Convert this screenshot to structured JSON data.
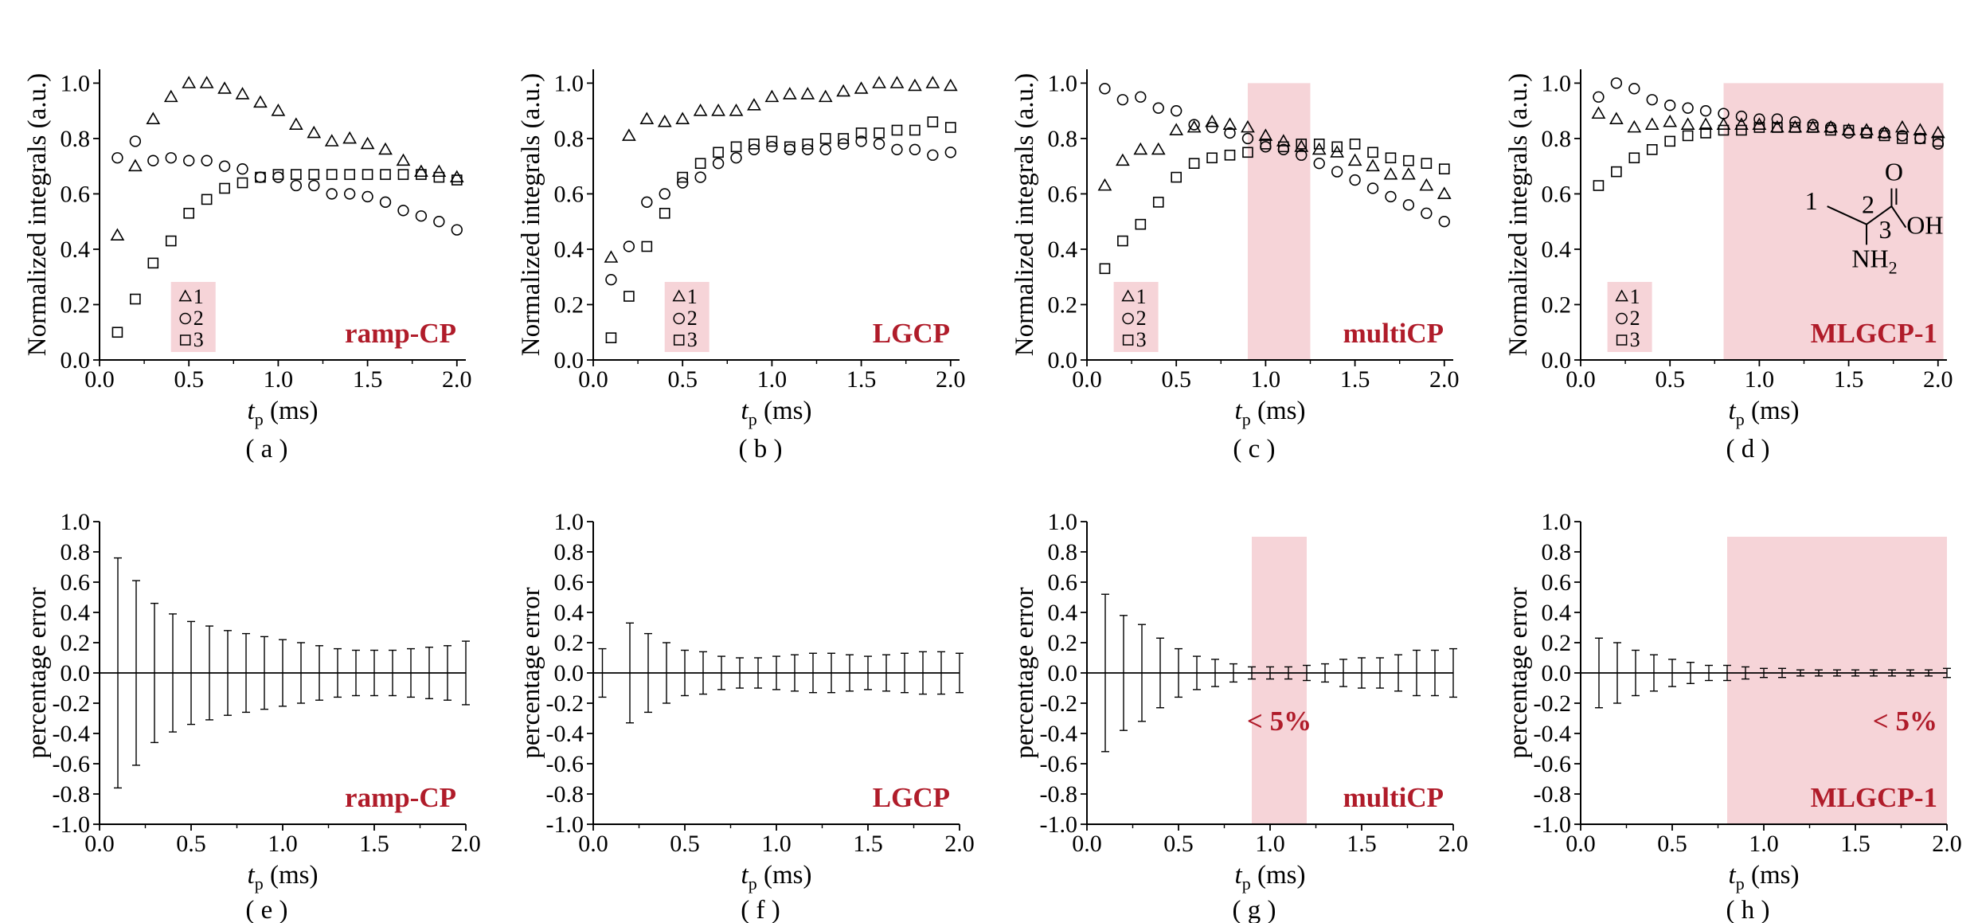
{
  "colors": {
    "method_label": "#b01c2a",
    "highlight": "#f6d4d8",
    "legend_box": "#f6d4d8",
    "ink": "#000000"
  },
  "chart_data": [
    {
      "id": "a",
      "type": "scatter",
      "panel_label": "( a )",
      "method": "ramp-CP",
      "xlabel_main": "t",
      "xlabel_sub": "p",
      "xlabel_unit": " (ms)",
      "ylabel": "Normalized integrals (a.u.)",
      "xlim": [
        0,
        2.05
      ],
      "ylim": [
        0,
        1.05
      ],
      "xticks": [
        "0.0",
        "0.5",
        "1.0",
        "1.5",
        "2.0"
      ],
      "yticks": [
        "0.0",
        "0.2",
        "0.4",
        "0.6",
        "0.8",
        "1.0"
      ],
      "legend": {
        "position": "lower-left-center",
        "entries": [
          "1",
          "2",
          "3"
        ],
        "markers": [
          "triangle",
          "circle",
          "square"
        ]
      },
      "highlight": null,
      "x": [
        0.1,
        0.2,
        0.3,
        0.4,
        0.5,
        0.6,
        0.7,
        0.8,
        0.9,
        1.0,
        1.1,
        1.2,
        1.3,
        1.4,
        1.5,
        1.6,
        1.7,
        1.8,
        1.9,
        2.0
      ],
      "series": [
        {
          "name": "1",
          "marker": "triangle",
          "values": [
            0.45,
            0.7,
            0.87,
            0.95,
            1.0,
            1.0,
            0.98,
            0.96,
            0.93,
            0.9,
            0.85,
            0.82,
            0.79,
            0.8,
            0.78,
            0.76,
            0.72,
            0.68,
            0.68,
            0.66
          ]
        },
        {
          "name": "2",
          "marker": "circle",
          "values": [
            0.73,
            0.79,
            0.72,
            0.73,
            0.72,
            0.72,
            0.7,
            0.69,
            0.66,
            0.66,
            0.63,
            0.63,
            0.6,
            0.6,
            0.59,
            0.57,
            0.54,
            0.52,
            0.5,
            0.47
          ]
        },
        {
          "name": "3",
          "marker": "square",
          "values": [
            0.1,
            0.22,
            0.35,
            0.43,
            0.53,
            0.58,
            0.62,
            0.64,
            0.66,
            0.67,
            0.67,
            0.67,
            0.67,
            0.67,
            0.67,
            0.67,
            0.67,
            0.67,
            0.66,
            0.65
          ]
        }
      ]
    },
    {
      "id": "b",
      "type": "scatter",
      "panel_label": "( b )",
      "method": "LGCP",
      "xlabel_main": "t",
      "xlabel_sub": "p",
      "xlabel_unit": " (ms)",
      "ylabel": "Normalized integrals (a.u.)",
      "xlim": [
        0,
        2.05
      ],
      "ylim": [
        0,
        1.05
      ],
      "xticks": [
        "0.0",
        "0.5",
        "1.0",
        "1.5",
        "2.0"
      ],
      "yticks": [
        "0.0",
        "0.2",
        "0.4",
        "0.6",
        "0.8",
        "1.0"
      ],
      "legend": {
        "position": "lower-left-center",
        "entries": [
          "1",
          "2",
          "3"
        ],
        "markers": [
          "triangle",
          "circle",
          "square"
        ]
      },
      "highlight": null,
      "x": [
        0.1,
        0.2,
        0.3,
        0.4,
        0.5,
        0.6,
        0.7,
        0.8,
        0.9,
        1.0,
        1.1,
        1.2,
        1.3,
        1.4,
        1.5,
        1.6,
        1.7,
        1.8,
        1.9,
        2.0
      ],
      "series": [
        {
          "name": "1",
          "marker": "triangle",
          "values": [
            0.37,
            0.81,
            0.87,
            0.86,
            0.87,
            0.9,
            0.9,
            0.9,
            0.92,
            0.95,
            0.96,
            0.96,
            0.95,
            0.97,
            0.98,
            1.0,
            1.0,
            0.99,
            1.0,
            0.99
          ]
        },
        {
          "name": "2",
          "marker": "circle",
          "values": [
            0.29,
            0.41,
            0.57,
            0.6,
            0.64,
            0.66,
            0.71,
            0.73,
            0.76,
            0.77,
            0.76,
            0.76,
            0.76,
            0.78,
            0.79,
            0.78,
            0.76,
            0.76,
            0.74,
            0.75
          ]
        },
        {
          "name": "3",
          "marker": "square",
          "values": [
            0.08,
            0.23,
            0.41,
            0.53,
            0.66,
            0.71,
            0.75,
            0.77,
            0.78,
            0.79,
            0.77,
            0.78,
            0.8,
            0.8,
            0.82,
            0.82,
            0.83,
            0.83,
            0.86,
            0.84
          ]
        }
      ]
    },
    {
      "id": "c",
      "type": "scatter",
      "panel_label": "( c )",
      "method": "multiCP",
      "xlabel_main": "t",
      "xlabel_sub": "p",
      "xlabel_unit": " (ms)",
      "ylabel": "Normalized integrals (a.u.)",
      "xlim": [
        0,
        2.05
      ],
      "ylim": [
        0,
        1.05
      ],
      "xticks": [
        "0.0",
        "0.5",
        "1.0",
        "1.5",
        "2.0"
      ],
      "yticks": [
        "0.0",
        "0.2",
        "0.4",
        "0.6",
        "0.8",
        "1.0"
      ],
      "legend": {
        "position": "lower-left",
        "entries": [
          "1",
          "2",
          "3"
        ],
        "markers": [
          "triangle",
          "circle",
          "square"
        ]
      },
      "highlight": {
        "x0": 0.9,
        "x1": 1.25,
        "y0": 0.0,
        "y1": 1.0
      },
      "x": [
        0.1,
        0.2,
        0.3,
        0.4,
        0.5,
        0.6,
        0.7,
        0.8,
        0.9,
        1.0,
        1.1,
        1.2,
        1.3,
        1.4,
        1.5,
        1.6,
        1.7,
        1.8,
        1.9,
        2.0
      ],
      "series": [
        {
          "name": "1",
          "marker": "triangle",
          "values": [
            0.63,
            0.72,
            0.76,
            0.76,
            0.83,
            0.84,
            0.86,
            0.85,
            0.84,
            0.81,
            0.79,
            0.77,
            0.76,
            0.75,
            0.72,
            0.7,
            0.67,
            0.67,
            0.63,
            0.6
          ]
        },
        {
          "name": "2",
          "marker": "circle",
          "values": [
            0.98,
            0.94,
            0.95,
            0.91,
            0.9,
            0.85,
            0.84,
            0.82,
            0.8,
            0.77,
            0.76,
            0.74,
            0.71,
            0.68,
            0.65,
            0.62,
            0.59,
            0.56,
            0.53,
            0.5
          ]
        },
        {
          "name": "3",
          "marker": "square",
          "values": [
            0.33,
            0.43,
            0.49,
            0.57,
            0.66,
            0.71,
            0.73,
            0.74,
            0.75,
            0.78,
            0.77,
            0.78,
            0.78,
            0.77,
            0.78,
            0.75,
            0.73,
            0.72,
            0.71,
            0.69
          ]
        }
      ]
    },
    {
      "id": "d",
      "type": "scatter",
      "panel_label": "( d )",
      "method": "MLGCP-1",
      "xlabel_main": "t",
      "xlabel_sub": "p",
      "xlabel_unit": " (ms)",
      "ylabel": "Normalized integrals (a.u.)",
      "xlim": [
        0,
        2.05
      ],
      "ylim": [
        0,
        1.05
      ],
      "xticks": [
        "0.0",
        "0.5",
        "1.0",
        "1.5",
        "2.0"
      ],
      "yticks": [
        "0.0",
        "0.2",
        "0.4",
        "0.6",
        "0.8",
        "1.0"
      ],
      "legend": {
        "position": "lower-left",
        "entries": [
          "1",
          "2",
          "3"
        ],
        "markers": [
          "triangle",
          "circle",
          "square"
        ]
      },
      "highlight": {
        "x0": 0.8,
        "x1": 2.03,
        "y0": 0.0,
        "y1": 1.0
      },
      "structure": {
        "labels": [
          "1",
          "2",
          "3"
        ],
        "atoms": [
          "O",
          "OH",
          "NH",
          "2"
        ]
      },
      "x": [
        0.1,
        0.2,
        0.3,
        0.4,
        0.5,
        0.6,
        0.7,
        0.8,
        0.9,
        1.0,
        1.1,
        1.2,
        1.3,
        1.4,
        1.5,
        1.6,
        1.7,
        1.8,
        1.9,
        2.0
      ],
      "series": [
        {
          "name": "1",
          "marker": "triangle",
          "values": [
            0.89,
            0.87,
            0.84,
            0.85,
            0.86,
            0.85,
            0.85,
            0.85,
            0.85,
            0.85,
            0.84,
            0.84,
            0.84,
            0.84,
            0.83,
            0.83,
            0.82,
            0.84,
            0.83,
            0.82
          ]
        },
        {
          "name": "2",
          "marker": "circle",
          "values": [
            0.95,
            1.0,
            0.98,
            0.94,
            0.92,
            0.91,
            0.9,
            0.89,
            0.88,
            0.87,
            0.87,
            0.86,
            0.85,
            0.84,
            0.82,
            0.82,
            0.82,
            0.81,
            0.8,
            0.78
          ]
        },
        {
          "name": "3",
          "marker": "square",
          "values": [
            0.63,
            0.68,
            0.73,
            0.76,
            0.79,
            0.81,
            0.82,
            0.83,
            0.83,
            0.84,
            0.84,
            0.84,
            0.84,
            0.83,
            0.83,
            0.82,
            0.81,
            0.8,
            0.8,
            0.79
          ]
        }
      ]
    },
    {
      "id": "e",
      "type": "errorbar",
      "panel_label": "( e )",
      "method": "ramp-CP",
      "xlabel_main": "t",
      "xlabel_sub": "p",
      "xlabel_unit": " (ms)",
      "ylabel": "percentage error",
      "xlim": [
        0,
        2.0
      ],
      "ylim": [
        -1.0,
        1.0
      ],
      "xticks": [
        "0.0",
        "0.5",
        "1.0",
        "1.5",
        "2.0"
      ],
      "yticks": [
        "-1.0",
        "-0.8",
        "-0.6",
        "-0.4",
        "-0.2",
        "0.0",
        "0.2",
        "0.4",
        "0.6",
        "0.8",
        "1.0"
      ],
      "highlight": null,
      "annotation": null,
      "x": [
        0.1,
        0.2,
        0.3,
        0.4,
        0.5,
        0.6,
        0.7,
        0.8,
        0.9,
        1.0,
        1.1,
        1.2,
        1.3,
        1.4,
        1.5,
        1.6,
        1.7,
        1.8,
        1.9,
        2.0
      ],
      "errors": [
        0.76,
        0.61,
        0.46,
        0.39,
        0.34,
        0.31,
        0.28,
        0.26,
        0.24,
        0.22,
        0.2,
        0.18,
        0.16,
        0.15,
        0.15,
        0.15,
        0.16,
        0.17,
        0.18,
        0.21
      ]
    },
    {
      "id": "f",
      "type": "errorbar",
      "panel_label": "( f )",
      "method": "LGCP",
      "xlabel_main": "t",
      "xlabel_sub": "p",
      "xlabel_unit": " (ms)",
      "ylabel": "percentage error",
      "xlim": [
        0,
        2.0
      ],
      "ylim": [
        -1.0,
        1.0
      ],
      "xticks": [
        "0.0",
        "0.5",
        "1.0",
        "1.5",
        "2.0"
      ],
      "yticks": [
        "-1.0",
        "-0.8",
        "-0.6",
        "-0.4",
        "-0.2",
        "0.0",
        "0.2",
        "0.4",
        "0.6",
        "0.8",
        "1.0"
      ],
      "highlight": null,
      "annotation": null,
      "x": [
        0.05,
        0.2,
        0.3,
        0.4,
        0.5,
        0.6,
        0.7,
        0.8,
        0.9,
        1.0,
        1.1,
        1.2,
        1.3,
        1.4,
        1.5,
        1.6,
        1.7,
        1.8,
        1.9,
        2.0
      ],
      "errors": [
        0.16,
        0.33,
        0.26,
        0.2,
        0.15,
        0.14,
        0.11,
        0.1,
        0.1,
        0.11,
        0.12,
        0.13,
        0.13,
        0.12,
        0.11,
        0.12,
        0.13,
        0.14,
        0.14,
        0.13
      ]
    },
    {
      "id": "g",
      "type": "errorbar",
      "panel_label": "( g )",
      "method": "multiCP",
      "xlabel_main": "t",
      "xlabel_sub": "p",
      "xlabel_unit": " (ms)",
      "ylabel": "percentage error",
      "xlim": [
        0,
        2.0
      ],
      "ylim": [
        -1.0,
        1.0
      ],
      "xticks": [
        "0.0",
        "0.5",
        "1.0",
        "1.5",
        "2.0"
      ],
      "yticks": [
        "-1.0",
        "-0.8",
        "-0.6",
        "-0.4",
        "-0.2",
        "0.0",
        "0.2",
        "0.4",
        "0.6",
        "0.8",
        "1.0"
      ],
      "highlight": {
        "x0": 0.9,
        "x1": 1.2,
        "y0": -1.0,
        "y1": 0.9
      },
      "annotation": "< 5%",
      "x": [
        0.1,
        0.2,
        0.3,
        0.4,
        0.5,
        0.6,
        0.7,
        0.8,
        0.9,
        1.0,
        1.1,
        1.2,
        1.3,
        1.4,
        1.5,
        1.6,
        1.7,
        1.8,
        1.9,
        2.0
      ],
      "errors": [
        0.52,
        0.38,
        0.32,
        0.23,
        0.16,
        0.11,
        0.09,
        0.06,
        0.04,
        0.04,
        0.04,
        0.05,
        0.06,
        0.09,
        0.1,
        0.1,
        0.12,
        0.15,
        0.15,
        0.16
      ]
    },
    {
      "id": "h",
      "type": "errorbar",
      "panel_label": "( h )",
      "method": "MLGCP-1",
      "xlabel_main": "t",
      "xlabel_sub": "p",
      "xlabel_unit": " (ms)",
      "ylabel": "percentage error",
      "xlim": [
        0,
        2.0
      ],
      "ylim": [
        -1.0,
        1.0
      ],
      "xticks": [
        "0.0",
        "0.5",
        "1.0",
        "1.5",
        "2.0"
      ],
      "yticks": [
        "-1.0",
        "-0.8",
        "-0.6",
        "-0.4",
        "-0.2",
        "0.0",
        "0.2",
        "0.4",
        "0.6",
        "0.8",
        "1.0"
      ],
      "highlight": {
        "x0": 0.8,
        "x1": 2.0,
        "y0": -1.0,
        "y1": 0.9
      },
      "annotation": "< 5%",
      "x": [
        0.1,
        0.2,
        0.3,
        0.4,
        0.5,
        0.6,
        0.7,
        0.8,
        0.9,
        1.0,
        1.1,
        1.2,
        1.3,
        1.4,
        1.5,
        1.6,
        1.7,
        1.8,
        1.9,
        2.0
      ],
      "errors": [
        0.23,
        0.2,
        0.15,
        0.12,
        0.09,
        0.07,
        0.05,
        0.05,
        0.04,
        0.03,
        0.03,
        0.02,
        0.02,
        0.02,
        0.02,
        0.02,
        0.02,
        0.02,
        0.02,
        0.03
      ]
    }
  ]
}
